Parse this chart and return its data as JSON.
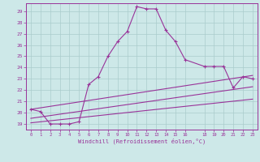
{
  "xlabel": "Windchill (Refroidissement éolien,°C)",
  "background_color": "#cde8e8",
  "grid_color": "#aacccc",
  "line_color": "#993399",
  "spine_color": "#993399",
  "xlim": [
    -0.5,
    23.5
  ],
  "ylim": [
    18.5,
    29.7
  ],
  "yticks": [
    19,
    20,
    21,
    22,
    23,
    24,
    25,
    26,
    27,
    28,
    29
  ],
  "xticks": [
    0,
    1,
    2,
    3,
    4,
    5,
    6,
    7,
    8,
    9,
    10,
    11,
    12,
    13,
    14,
    15,
    16,
    18,
    19,
    20,
    21,
    22,
    23
  ],
  "curve1_x": [
    0,
    1,
    2,
    3,
    4,
    5,
    6,
    7,
    8,
    9,
    10,
    11,
    12,
    13,
    14,
    15,
    16,
    18,
    19,
    20,
    21,
    22,
    23
  ],
  "curve1_y": [
    20.3,
    20.1,
    19.0,
    19.0,
    19.0,
    19.2,
    22.5,
    23.2,
    25.0,
    26.3,
    27.2,
    29.4,
    29.2,
    29.2,
    27.3,
    26.3,
    24.7,
    24.1,
    24.1,
    24.1,
    22.2,
    23.2,
    23.0
  ],
  "line1_x": [
    0,
    23
  ],
  "line1_y": [
    19.1,
    21.2
  ],
  "line2_x": [
    0,
    23
  ],
  "line2_y": [
    19.5,
    22.3
  ],
  "line3_x": [
    0,
    23
  ],
  "line3_y": [
    20.3,
    23.3
  ]
}
